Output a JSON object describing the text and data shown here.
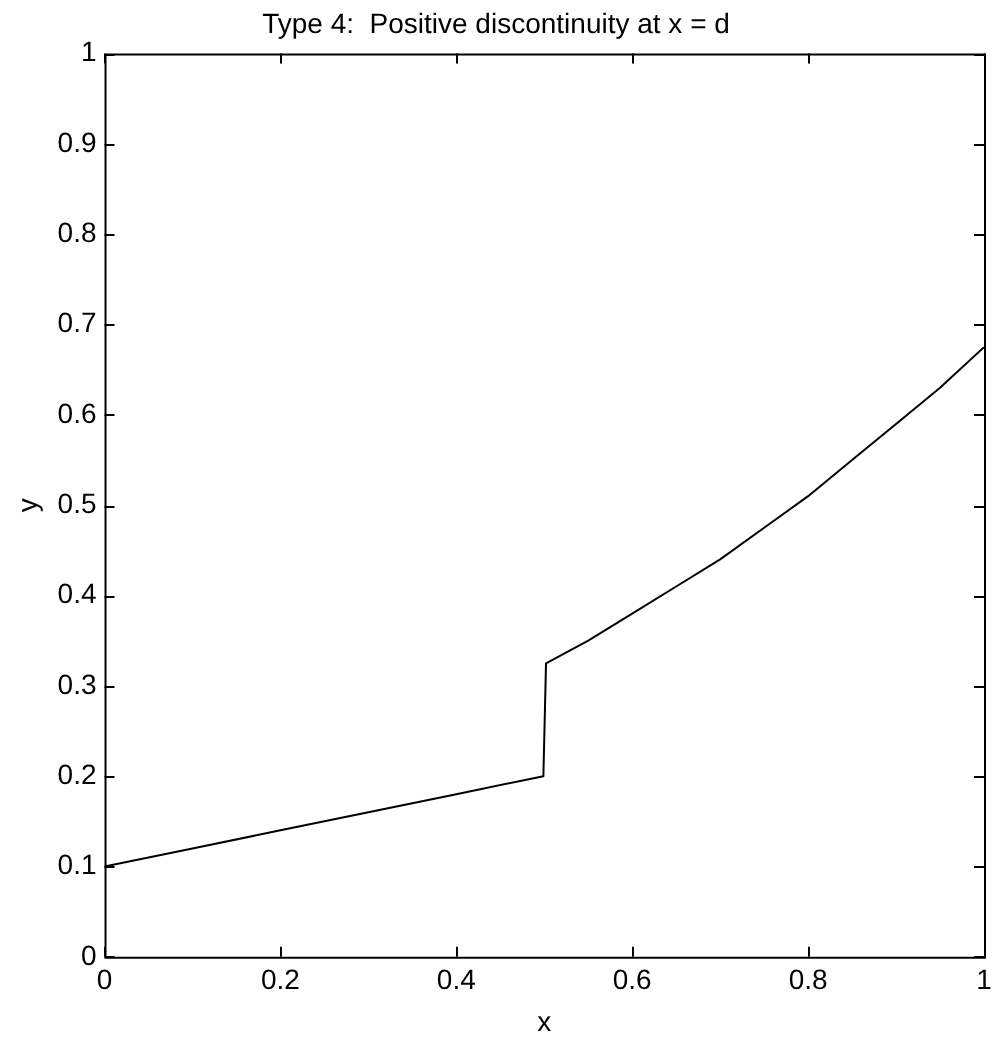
{
  "chart_data": {
    "type": "line",
    "title": "Type 4:  Positive discontinuity at x = d",
    "xlabel": "x",
    "ylabel": "y",
    "series": [
      {
        "color": "#000000",
        "x": [
          0,
          0.1,
          0.2,
          0.3,
          0.4,
          0.499,
          0.502,
          0.55,
          0.6,
          0.65,
          0.7,
          0.75,
          0.8,
          0.85,
          0.9,
          0.95,
          1.0
        ],
        "values": [
          0.1,
          0.12,
          0.14,
          0.16,
          0.18,
          0.2,
          0.325,
          0.35,
          0.38,
          0.41,
          0.44,
          0.475,
          0.51,
          0.55,
          0.59,
          0.63,
          0.675
        ]
      }
    ],
    "xlim": [
      0,
      1
    ],
    "xticks": [
      0,
      0.2,
      0.4,
      0.6,
      0.8,
      1
    ],
    "ylim": [
      0,
      1
    ],
    "yticks": [
      0,
      0.1,
      0.2,
      0.3,
      0.4,
      0.5,
      0.6,
      0.7,
      0.8,
      0.9,
      1
    ],
    "marker": "none",
    "line_style": "solid"
  }
}
